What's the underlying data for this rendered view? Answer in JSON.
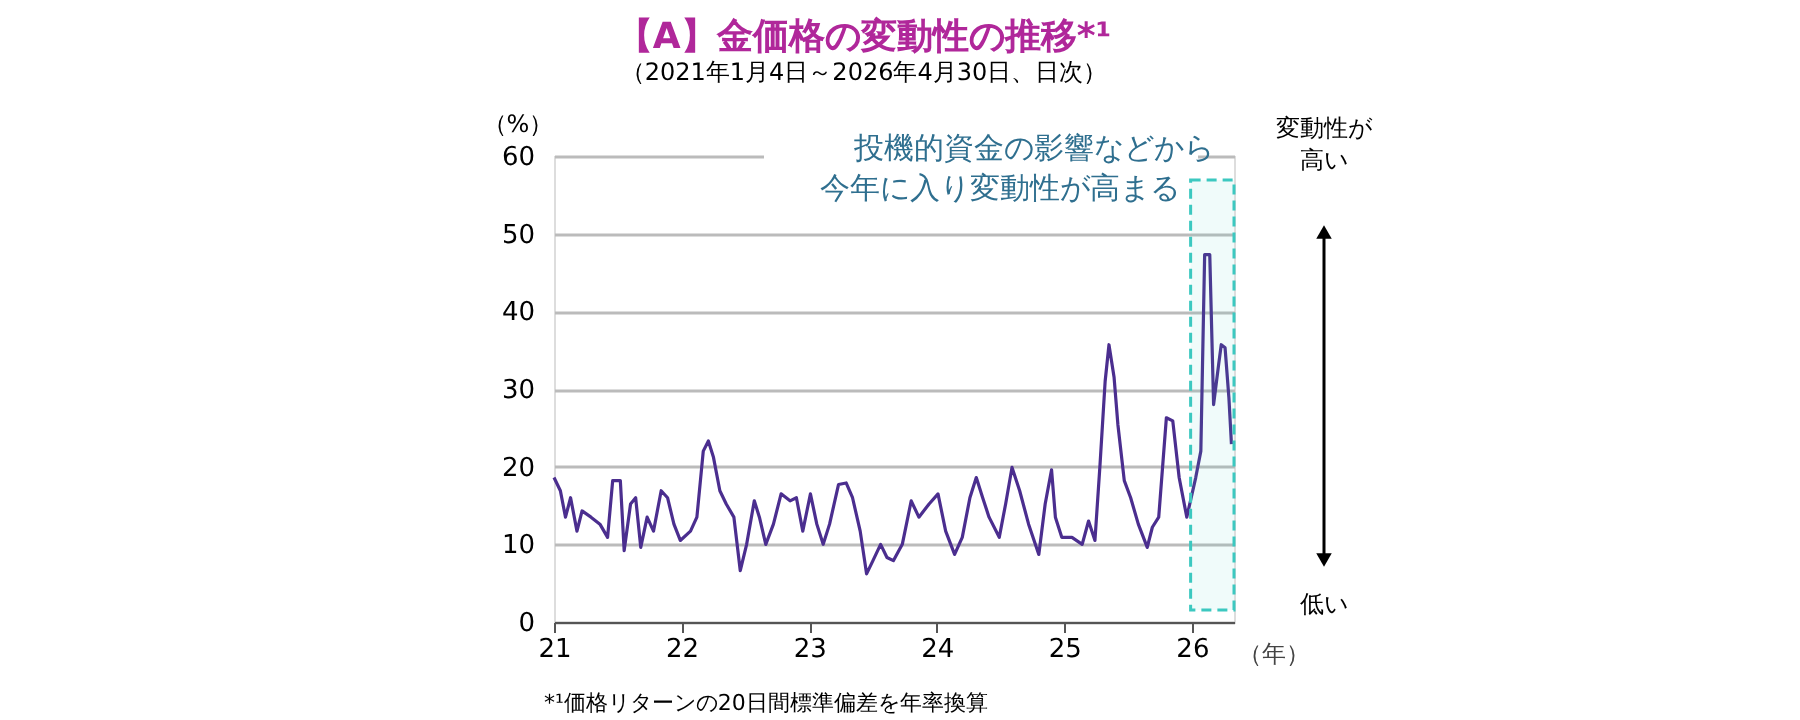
{
  "chart_data": {
    "type": "line",
    "title": "【A】金価格の変動性の推移*¹",
    "subtitle": "（2021年1月4日～2026年4月30日、日次）",
    "xlabel": "（年）",
    "ylabel": "（%）",
    "x": [
      2021.0,
      2021.05,
      2021.09,
      2021.13,
      2021.18,
      2021.22,
      2021.29,
      2021.36,
      2021.42,
      2021.46,
      2021.52,
      2021.55,
      2021.6,
      2021.64,
      2021.68,
      2021.73,
      2021.78,
      2021.84,
      2021.89,
      2021.94,
      2021.99,
      2022.07,
      2022.12,
      2022.17,
      2022.21,
      2022.25,
      2022.3,
      2022.35,
      2022.41,
      2022.46,
      2022.51,
      2022.57,
      2022.61,
      2022.66,
      2022.72,
      2022.78,
      2022.85,
      2022.9,
      2022.95,
      2023.01,
      2023.06,
      2023.11,
      2023.16,
      2023.23,
      2023.29,
      2023.34,
      2023.4,
      2023.45,
      2023.5,
      2023.56,
      2023.61,
      2023.66,
      2023.73,
      2023.8,
      2023.86,
      2023.94,
      2024.01,
      2024.07,
      2024.14,
      2024.2,
      2024.26,
      2024.31,
      2024.36,
      2024.41,
      2024.49,
      2024.54,
      2024.59,
      2024.65,
      2024.72,
      2024.8,
      2024.85,
      2024.9,
      2024.93,
      2024.98,
      2025.06,
      2025.14,
      2025.19,
      2025.24,
      2025.28,
      2025.32,
      2025.35,
      2025.39,
      2025.42,
      2025.47,
      2025.52,
      2025.58,
      2025.65,
      2025.69,
      2025.74,
      2025.8,
      2025.85,
      2025.9,
      2025.96,
      2026.03,
      2026.07,
      2026.1,
      2026.14,
      2026.17,
      2026.21,
      2026.23,
      2026.26,
      2026.29,
      2026.31
    ],
    "series": [
      {
        "color": "#4b2e8f",
        "values": [
          18.6,
          16.9,
          13.5,
          16,
          11.7,
          14.3,
          13.5,
          12.6,
          10.9,
          18.2,
          18.2,
          9.2,
          15.2,
          16,
          9.6,
          13.5,
          11.7,
          16.9,
          16,
          12.6,
          10.5,
          11.7,
          13.5,
          22,
          23.3,
          21.2,
          16.9,
          15.2,
          13.5,
          6.6,
          10,
          15.6,
          13.5,
          10,
          12.6,
          16.5,
          15.6,
          16,
          11.7,
          16.5,
          12.6,
          10,
          12.6,
          17.7,
          17.9,
          16,
          11.7,
          6.2,
          7.9,
          10,
          8.3,
          7.9,
          10,
          15.6,
          13.5,
          15.2,
          16.5,
          11.7,
          8.7,
          10.9,
          16,
          18.6,
          16,
          13.5,
          10.9,
          15.2,
          19.9,
          16.9,
          12.6,
          8.7,
          15.2,
          19.6,
          13.5,
          10.9,
          10.9,
          10,
          13,
          10.5,
          20.3,
          31,
          35.7,
          31.5,
          25.4,
          18.2,
          16,
          12.6,
          9.6,
          12.2,
          13.5,
          26.3,
          25.9,
          18.6,
          13.5,
          18.6,
          22,
          47.3,
          47.3,
          28,
          33.2,
          35.7,
          35.3,
          28.9,
          22.9
        ]
      }
    ],
    "xlim": [
      2021,
      2026.33
    ],
    "xticks": [
      {
        "value": 2021,
        "label": "21"
      },
      {
        "value": 2022,
        "label": "22"
      },
      {
        "value": 2023,
        "label": "23"
      },
      {
        "value": 2024,
        "label": "24"
      },
      {
        "value": 2025,
        "label": "25"
      },
      {
        "value": 2026,
        "label": "26"
      }
    ],
    "ylim": [
      0,
      60
    ],
    "yticks": [
      0,
      10,
      20,
      30,
      40,
      50,
      60
    ],
    "grid": "y",
    "marker": "none",
    "line_style": "solid",
    "bands": [
      {
        "axis": "x",
        "from": 2025.99,
        "to": 2026.33,
        "color": "#3cc8c0"
      }
    ],
    "annotations": [
      "投機的資金の影響などから",
      "今年に入り変動性が高まる",
      "変動性が",
      "高い",
      "低い",
      "*¹価格リターンの20日間標準偏差を年率換算"
    ]
  }
}
